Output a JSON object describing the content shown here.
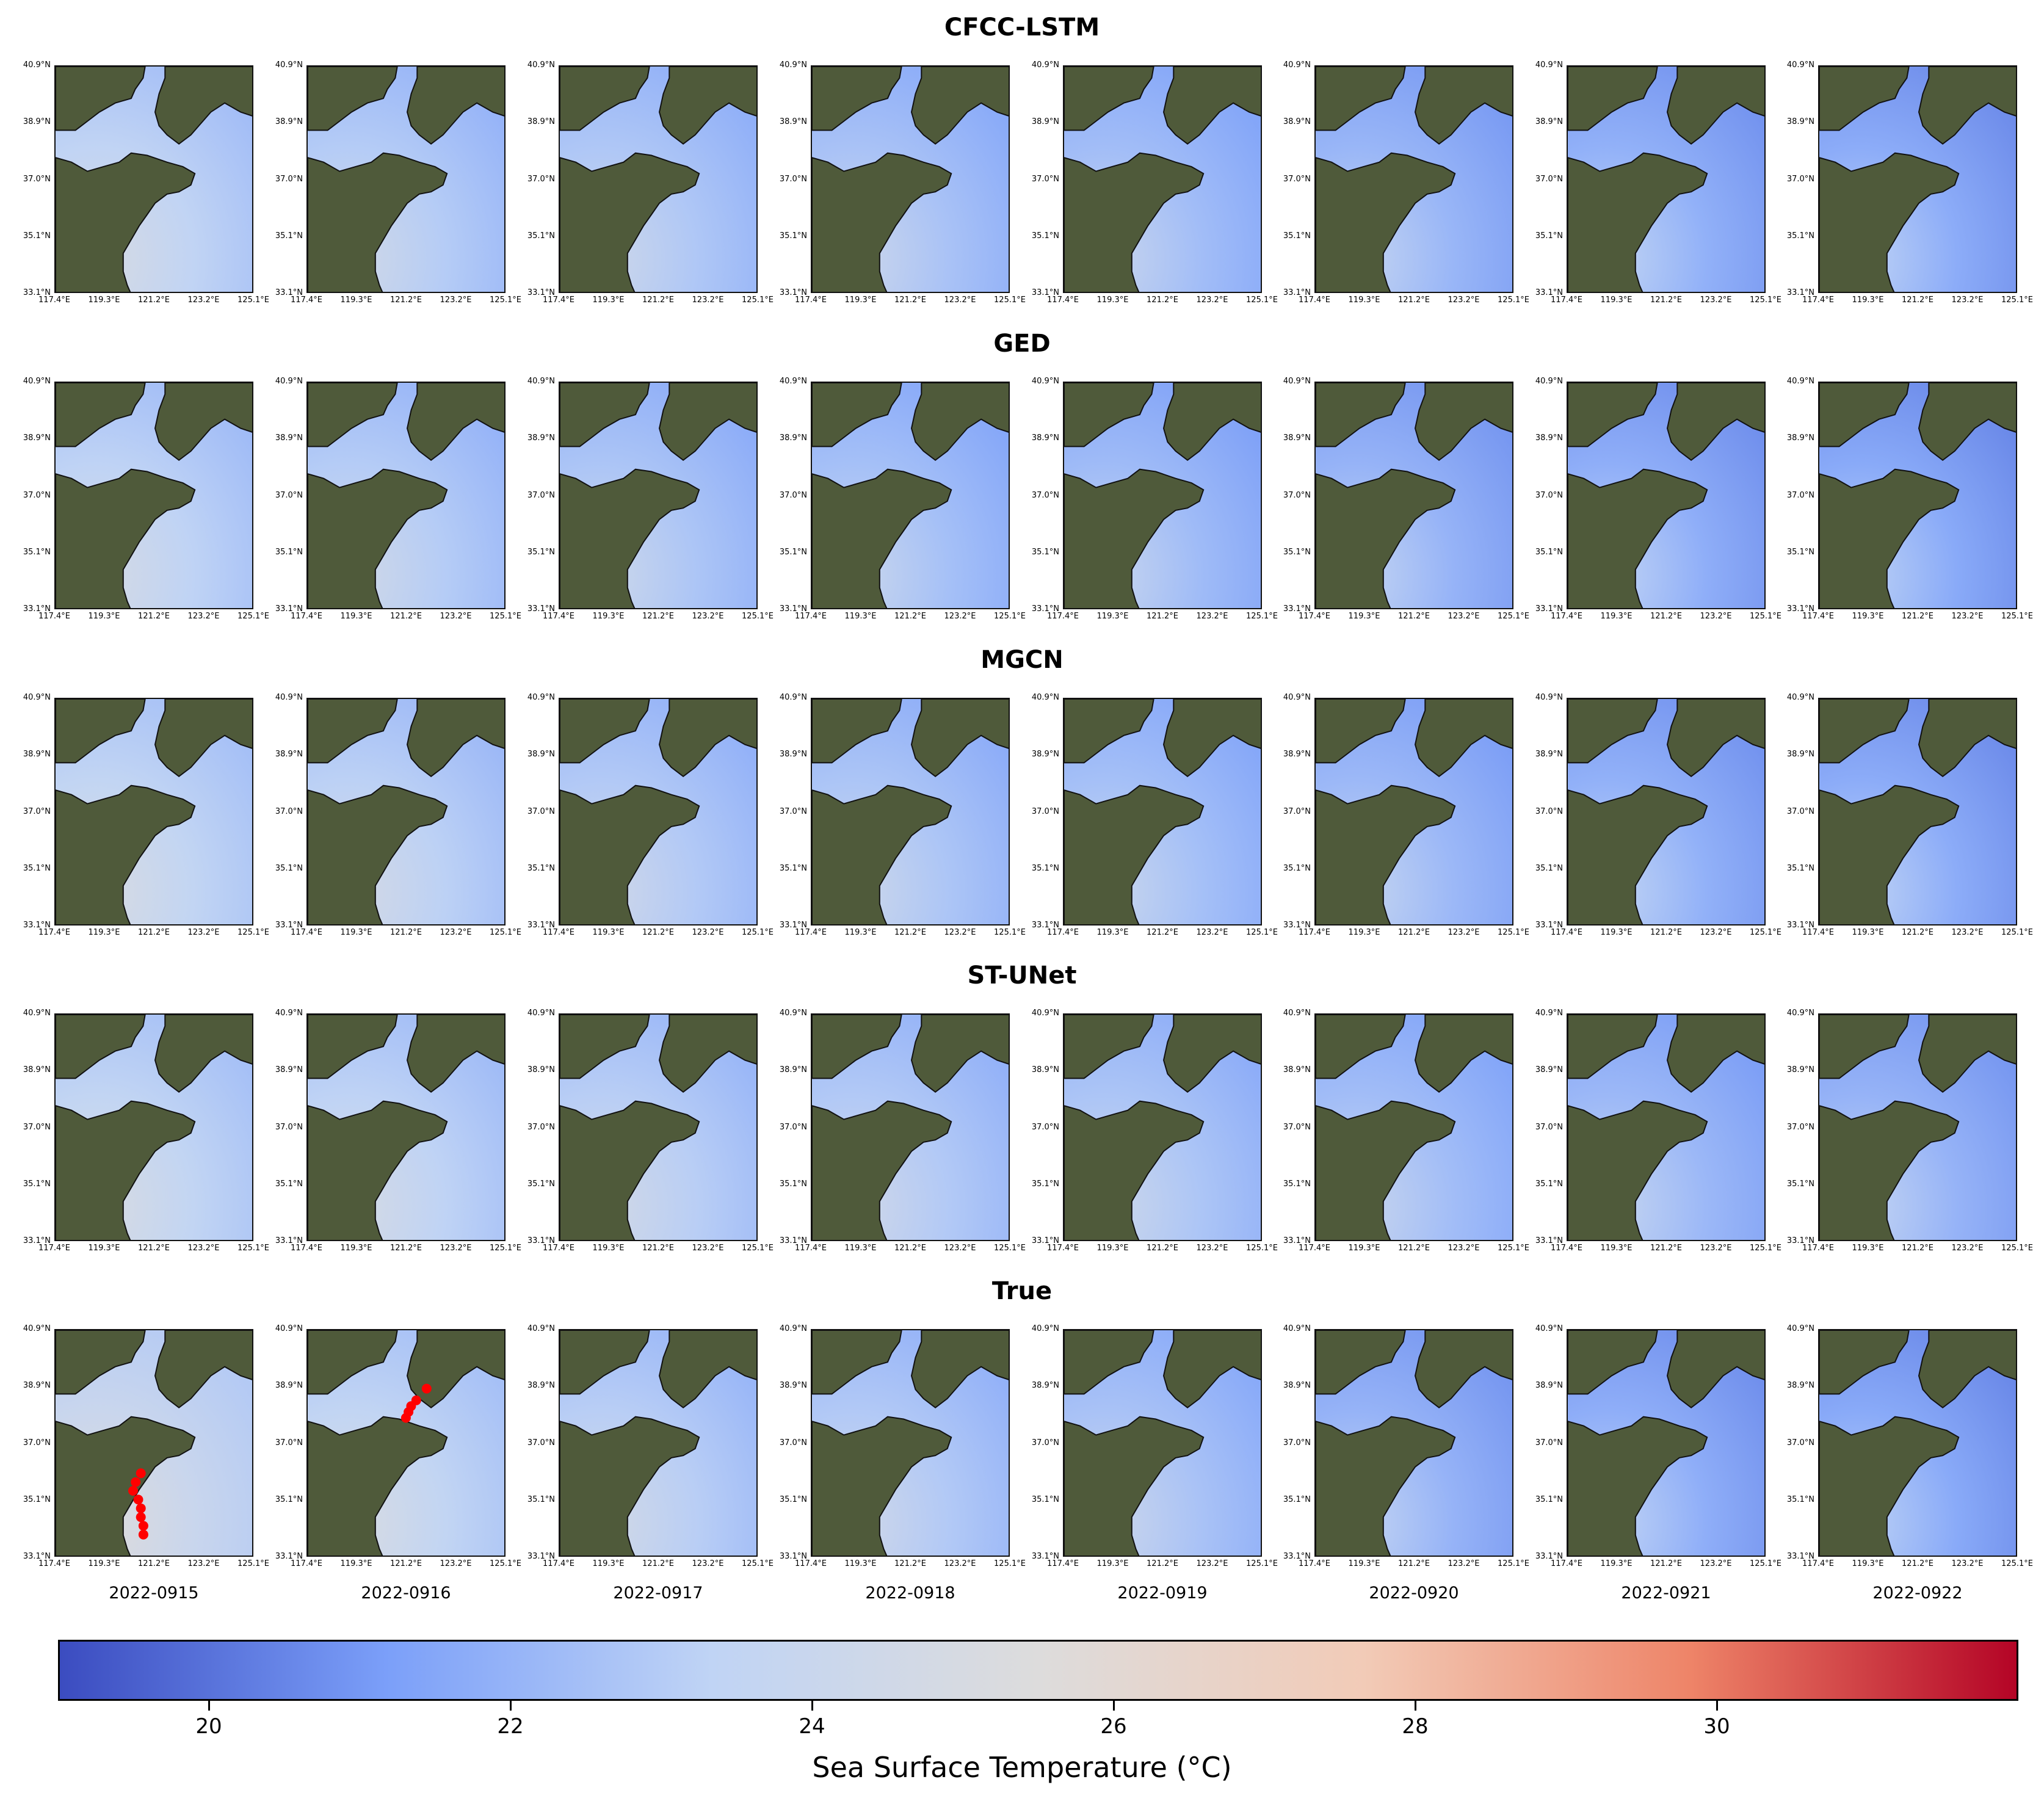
{
  "chart_data": {
    "type": "heatmap",
    "description_rows": [
      "CFCC-LSTM",
      "GED",
      "MGCN",
      "ST-UNet",
      "True"
    ],
    "dates": [
      "2022-0915",
      "2022-0916",
      "2022-0917",
      "2022-0918",
      "2022-0919",
      "2022-0920",
      "2022-0921",
      "2022-0922"
    ],
    "lat_ticks": [
      "40.9°N",
      "38.9°N",
      "37.0°N",
      "35.1°N",
      "33.1°N"
    ],
    "lon_ticks": [
      "117.4°E",
      "119.3°E",
      "121.2°E",
      "123.2°E",
      "125.1°E"
    ],
    "lat_range": [
      33.1,
      40.9
    ],
    "lon_range": [
      117.4,
      125.1
    ],
    "colorbar": {
      "label": "Sea Surface Temperature (°C)",
      "range": [
        19,
        32
      ],
      "ticks": [
        20,
        22,
        24,
        26,
        28,
        30
      ],
      "colormap": "coolwarm",
      "stops": [
        "#3b4cc0",
        "#7b9ff9",
        "#c0d4f5",
        "#dddcdc",
        "#f2cbb7",
        "#ee8468",
        "#b40426"
      ]
    },
    "mean_sst_celsius": [
      [
        23.4,
        23.0,
        22.8,
        22.6,
        22.4,
        22.1,
        21.9,
        21.7
      ],
      [
        23.3,
        23.0,
        22.7,
        22.5,
        22.3,
        22.0,
        21.8,
        21.6
      ],
      [
        23.5,
        23.2,
        22.9,
        22.7,
        22.5,
        22.2,
        21.9,
        21.7
      ],
      [
        23.5,
        23.3,
        23.1,
        22.9,
        22.7,
        22.4,
        22.2,
        22.0
      ],
      [
        24.0,
        23.5,
        23.1,
        22.9,
        22.6,
        22.0,
        21.8,
        21.6
      ]
    ],
    "overlay_points": [
      {
        "row": 4,
        "col": 0,
        "color": "#ff0000",
        "track": [
          [
            120.7,
            36.0
          ],
          [
            120.5,
            35.7
          ],
          [
            120.4,
            35.4
          ],
          [
            120.6,
            35.1
          ],
          [
            120.7,
            34.8
          ],
          [
            120.7,
            34.5
          ],
          [
            120.8,
            34.2
          ],
          [
            120.8,
            33.9
          ]
        ]
      },
      {
        "row": 4,
        "col": 1,
        "color": "#ff0000",
        "track": [
          [
            121.2,
            37.9
          ],
          [
            121.3,
            38.1
          ],
          [
            121.4,
            38.3
          ],
          [
            121.6,
            38.5
          ],
          [
            122.0,
            38.9
          ]
        ]
      }
    ]
  }
}
